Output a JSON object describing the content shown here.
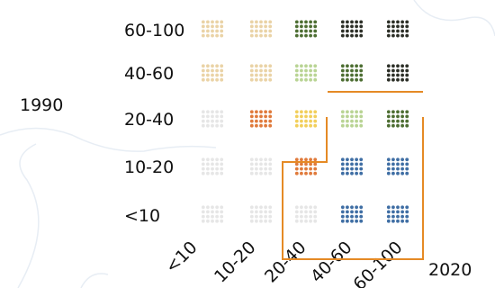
{
  "chart_data": {
    "type": "heatmap",
    "x_title": "2020",
    "y_title": "1990",
    "x_categories": [
      "<10",
      "10-20",
      "20-40",
      "40-60",
      "60-100"
    ],
    "y_categories": [
      "<10",
      "10-20",
      "20-40",
      "40-60",
      "60-100"
    ],
    "cells": [
      [
        "faint",
        "faint",
        "faint",
        "blue",
        "blue"
      ],
      [
        "faint",
        "faint",
        "orange",
        "blue",
        "blue"
      ],
      [
        "faint",
        "orange",
        "yellow",
        "lightgreen",
        "darkgreen"
      ],
      [
        "tan",
        "tan",
        "lightgreen",
        "darkgreen",
        "black"
      ],
      [
        "tan",
        "tan",
        "darkgreen",
        "black",
        "black"
      ]
    ],
    "colors": {
      "faint": "#e6e6e6",
      "tan": "#ead3a6",
      "yellow": "#f2cf5a",
      "orange": "#e07a3b",
      "lightgreen": "#b9d494",
      "darkgreen": "#4d6e32",
      "black": "#2c2f27",
      "blue": "#3f6ea4",
      "outline": "#e58a25",
      "basemap": "#e7edf4"
    },
    "grid": false
  }
}
